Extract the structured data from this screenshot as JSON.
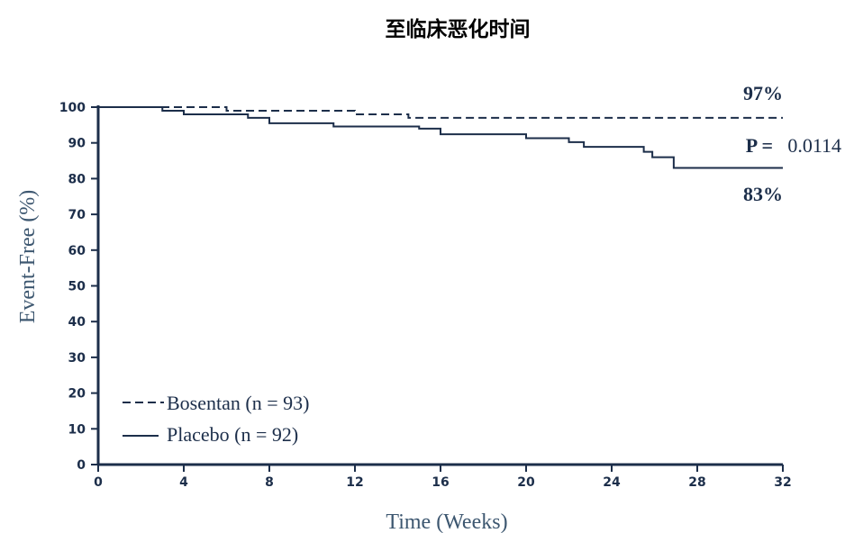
{
  "colors": {
    "line": "#1c2e4a",
    "axis": "#1c2e4a",
    "axis_label": "#3d5770"
  },
  "chart_data": {
    "type": "line",
    "title": "至临床恶化时间",
    "xlabel": "Time (Weeks)",
    "ylabel": "Event-Free (%)",
    "xlim": [
      0,
      32
    ],
    "ylim": [
      0,
      100
    ],
    "x_ticks": [
      "0",
      "4",
      "8",
      "12",
      "16",
      "20",
      "24",
      "28",
      "32"
    ],
    "y_ticks": [
      "0",
      "10",
      "20",
      "30",
      "40",
      "50",
      "60",
      "70",
      "80",
      "90",
      "100"
    ],
    "grid": false,
    "legend_position": "bottom-left",
    "series": [
      {
        "name": "Bosentan (n = 93)",
        "style": "dashed",
        "step": true,
        "x": [
          0,
          3.2,
          6,
          12,
          14.5,
          32
        ],
        "y": [
          100,
          100,
          99,
          98,
          97,
          97
        ]
      },
      {
        "name": "Placebo (n = 92)",
        "style": "solid",
        "step": true,
        "x": [
          0,
          3,
          4,
          7,
          8,
          11,
          15,
          16,
          20,
          22,
          22.7,
          25.5,
          25.9,
          26.9,
          32
        ],
        "y": [
          100,
          99,
          98,
          97,
          95.5,
          94.6,
          94,
          92.4,
          91.3,
          90.2,
          88.9,
          87.5,
          86,
          83,
          83
        ]
      }
    ],
    "annotations": {
      "bosentan_end": "97%",
      "placebo_end": "83%",
      "p_label": "P =",
      "p_value": "0.0114"
    }
  }
}
